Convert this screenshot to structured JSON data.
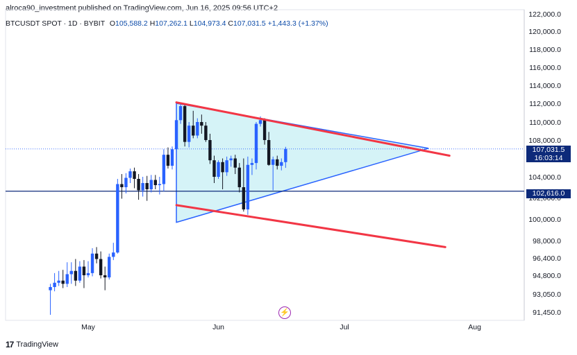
{
  "header": {
    "text": "alroca90_investment published on TradingView.com, Jun 16, 2025 09:56 UTC+2"
  },
  "ohlc": {
    "symbol": "BTCUSDT SPOT · 1D · BYBIT",
    "o_label": "O",
    "o": "105,588.2",
    "h_label": "H",
    "h": "107,262.1",
    "l_label": "L",
    "l": "104,973.4",
    "c_label": "C",
    "c": "107,031.5",
    "change": "+1,443.3 (+1.37%)"
  },
  "price_tags": {
    "last": "107,031.5",
    "countdown": "16:03:14",
    "level": "102,616.0"
  },
  "footer": {
    "brand": "TradingView"
  },
  "colors": {
    "up": "#2962ff",
    "down": "#131722",
    "triangle_fill": "#d5f3f7",
    "triangle_stroke": "#2962ff",
    "red_line": "#f23645",
    "level_line": "#0d2a7a"
  },
  "chart_data": {
    "type": "candlestick",
    "yaxis_ticks": [
      "122,000.0",
      "120,000.0",
      "118,000.0",
      "116,000.0",
      "114,000.0",
      "112,000.0",
      "110,000.0",
      "108,000.0",
      "104,000.0",
      "102,000.0",
      "100,000.0",
      "98,000.0",
      "96,400.0",
      "94,800.0",
      "93,050.0",
      "91,450.0"
    ],
    "xaxis_ticks": [
      "May",
      "Jun",
      "Jul",
      "Aug"
    ],
    "level": 102616,
    "last_price": 107031.5,
    "candles": [
      {
        "o": 93400,
        "h": 94000,
        "l": 91200,
        "c": 93700
      },
      {
        "o": 93700,
        "h": 95000,
        "l": 93300,
        "c": 94100
      },
      {
        "o": 94100,
        "h": 95200,
        "l": 93800,
        "c": 94300
      },
      {
        "o": 94300,
        "h": 95300,
        "l": 93600,
        "c": 94000
      },
      {
        "o": 94000,
        "h": 96000,
        "l": 93700,
        "c": 94900
      },
      {
        "o": 94900,
        "h": 96000,
        "l": 94000,
        "c": 95200
      },
      {
        "o": 95200,
        "h": 96300,
        "l": 93800,
        "c": 94300
      },
      {
        "o": 94300,
        "h": 96100,
        "l": 94100,
        "c": 95600
      },
      {
        "o": 95600,
        "h": 96200,
        "l": 93600,
        "c": 94800
      },
      {
        "o": 94800,
        "h": 96100,
        "l": 94600,
        "c": 95000
      },
      {
        "o": 95000,
        "h": 97300,
        "l": 94700,
        "c": 96800
      },
      {
        "o": 96800,
        "h": 97400,
        "l": 95900,
        "c": 96300
      },
      {
        "o": 96300,
        "h": 97000,
        "l": 94500,
        "c": 94800
      },
      {
        "o": 94800,
        "h": 95600,
        "l": 93400,
        "c": 94600
      },
      {
        "o": 94600,
        "h": 96800,
        "l": 94400,
        "c": 96500
      },
      {
        "o": 96500,
        "h": 97800,
        "l": 96200,
        "c": 96900
      },
      {
        "o": 96900,
        "h": 103800,
        "l": 96800,
        "c": 103300
      },
      {
        "o": 103300,
        "h": 104300,
        "l": 101900,
        "c": 103000
      },
      {
        "o": 103000,
        "h": 104400,
        "l": 102400,
        "c": 103900
      },
      {
        "o": 103900,
        "h": 104900,
        "l": 103400,
        "c": 104600
      },
      {
        "o": 104600,
        "h": 105000,
        "l": 102900,
        "c": 103800
      },
      {
        "o": 103800,
        "h": 104300,
        "l": 101800,
        "c": 102700
      },
      {
        "o": 102700,
        "h": 104000,
        "l": 102100,
        "c": 103400
      },
      {
        "o": 103400,
        "h": 104100,
        "l": 101700,
        "c": 102800
      },
      {
        "o": 102800,
        "h": 104200,
        "l": 102500,
        "c": 103700
      },
      {
        "o": 103700,
        "h": 104200,
        "l": 102800,
        "c": 103200
      },
      {
        "o": 103200,
        "h": 104000,
        "l": 102300,
        "c": 103300
      },
      {
        "o": 103300,
        "h": 107000,
        "l": 102600,
        "c": 106400
      },
      {
        "o": 106400,
        "h": 107200,
        "l": 104900,
        "c": 105200
      },
      {
        "o": 105200,
        "h": 107300,
        "l": 104800,
        "c": 107000
      },
      {
        "o": 107000,
        "h": 111000,
        "l": 106700,
        "c": 110200
      },
      {
        "o": 110200,
        "h": 112000,
        "l": 109800,
        "c": 111700
      },
      {
        "o": 111700,
        "h": 111900,
        "l": 107300,
        "c": 107800
      },
      {
        "o": 107800,
        "h": 110000,
        "l": 107200,
        "c": 109600
      },
      {
        "o": 109600,
        "h": 111200,
        "l": 108200,
        "c": 108500
      },
      {
        "o": 108500,
        "h": 110400,
        "l": 108200,
        "c": 110000
      },
      {
        "o": 110000,
        "h": 110800,
        "l": 108700,
        "c": 109600
      },
      {
        "o": 109600,
        "h": 110000,
        "l": 107800,
        "c": 108000
      },
      {
        "o": 108000,
        "h": 108700,
        "l": 105400,
        "c": 105800
      },
      {
        "o": 105800,
        "h": 106300,
        "l": 103400,
        "c": 104000
      },
      {
        "o": 104000,
        "h": 105800,
        "l": 103800,
        "c": 105600
      },
      {
        "o": 105600,
        "h": 106000,
        "l": 102800,
        "c": 104500
      },
      {
        "o": 104500,
        "h": 106200,
        "l": 104100,
        "c": 105800
      },
      {
        "o": 105800,
        "h": 106300,
        "l": 105100,
        "c": 106000
      },
      {
        "o": 106000,
        "h": 106400,
        "l": 104300,
        "c": 105000
      },
      {
        "o": 105000,
        "h": 105500,
        "l": 102500,
        "c": 103000
      },
      {
        "o": 103000,
        "h": 106000,
        "l": 100700,
        "c": 100900
      },
      {
        "o": 100900,
        "h": 106200,
        "l": 100400,
        "c": 105300
      },
      {
        "o": 105300,
        "h": 106000,
        "l": 104200,
        "c": 105500
      },
      {
        "o": 105500,
        "h": 110000,
        "l": 104800,
        "c": 109800
      },
      {
        "o": 109800,
        "h": 110600,
        "l": 109500,
        "c": 110200
      },
      {
        "o": 110200,
        "h": 110400,
        "l": 107500,
        "c": 108000
      },
      {
        "o": 108000,
        "h": 108900,
        "l": 105200,
        "c": 105300
      },
      {
        "o": 105300,
        "h": 106200,
        "l": 102700,
        "c": 105900
      },
      {
        "o": 105900,
        "h": 106300,
        "l": 104800,
        "c": 105200
      },
      {
        "o": 105200,
        "h": 106000,
        "l": 104700,
        "c": 105600
      },
      {
        "o": 105600,
        "h": 107262,
        "l": 104973,
        "c": 107031.5
      }
    ],
    "triangle": [
      {
        "date": "2025-05-22",
        "price": 112000
      },
      {
        "date": "2025-05-22",
        "price": 99700
      },
      {
        "date": "2025-07-21",
        "price": 107100
      }
    ],
    "red_line_upper": [
      {
        "date": "2025-05-22",
        "price": 112100
      },
      {
        "date": "2025-07-26",
        "price": 106300
      }
    ],
    "red_line_lower": [
      {
        "date": "2025-05-22",
        "price": 101300
      },
      {
        "date": "2025-07-25",
        "price": 97400
      }
    ]
  }
}
